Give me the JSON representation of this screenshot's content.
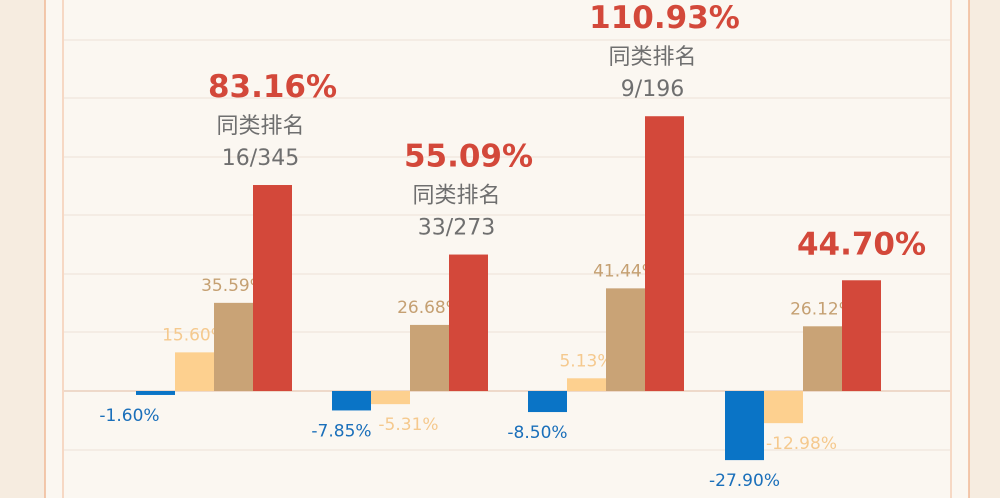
{
  "colors": {
    "background": "#f6ece0",
    "panel": "#fbf7f1",
    "frame": "#f0b896",
    "grid": "#ece2d7",
    "baseline": "#e7c7b4"
  },
  "chart_data": {
    "type": "bar",
    "grid": true,
    "categories": [
      "",
      "",
      "",
      ""
    ],
    "series": [
      {
        "color": "#0a74c6",
        "label_color": "#1a6fba",
        "values": [
          -1.6,
          -7.85,
          -8.5,
          -27.9
        ],
        "labels": [
          "-1.60%",
          "-7.85%",
          "-8.50%",
          "-27.90%"
        ]
      },
      {
        "color": "#fdd08f",
        "label_color": "#f5c98e",
        "values": [
          15.6,
          -5.31,
          5.13,
          -12.98
        ],
        "labels": [
          "15.60%",
          "-5.31%",
          "5.13%",
          "-12.98%"
        ]
      },
      {
        "color": "#c9a376",
        "label_color": "#c5a072",
        "values": [
          35.59,
          26.68,
          41.44,
          26.12
        ],
        "labels": [
          "35.59%",
          "26.68%",
          "41.44%",
          "26.12%"
        ]
      },
      {
        "color": "#d3483a",
        "label_color": "#d3483a",
        "values": [
          83.16,
          55.09,
          110.93,
          44.7
        ],
        "labels": [
          "83.16%",
          "55.09%",
          "110.93%",
          "44.70%"
        ]
      }
    ],
    "rank_caption": "同类排名",
    "ranks": [
      "16/345",
      "33/273",
      "9/196",
      ""
    ]
  }
}
